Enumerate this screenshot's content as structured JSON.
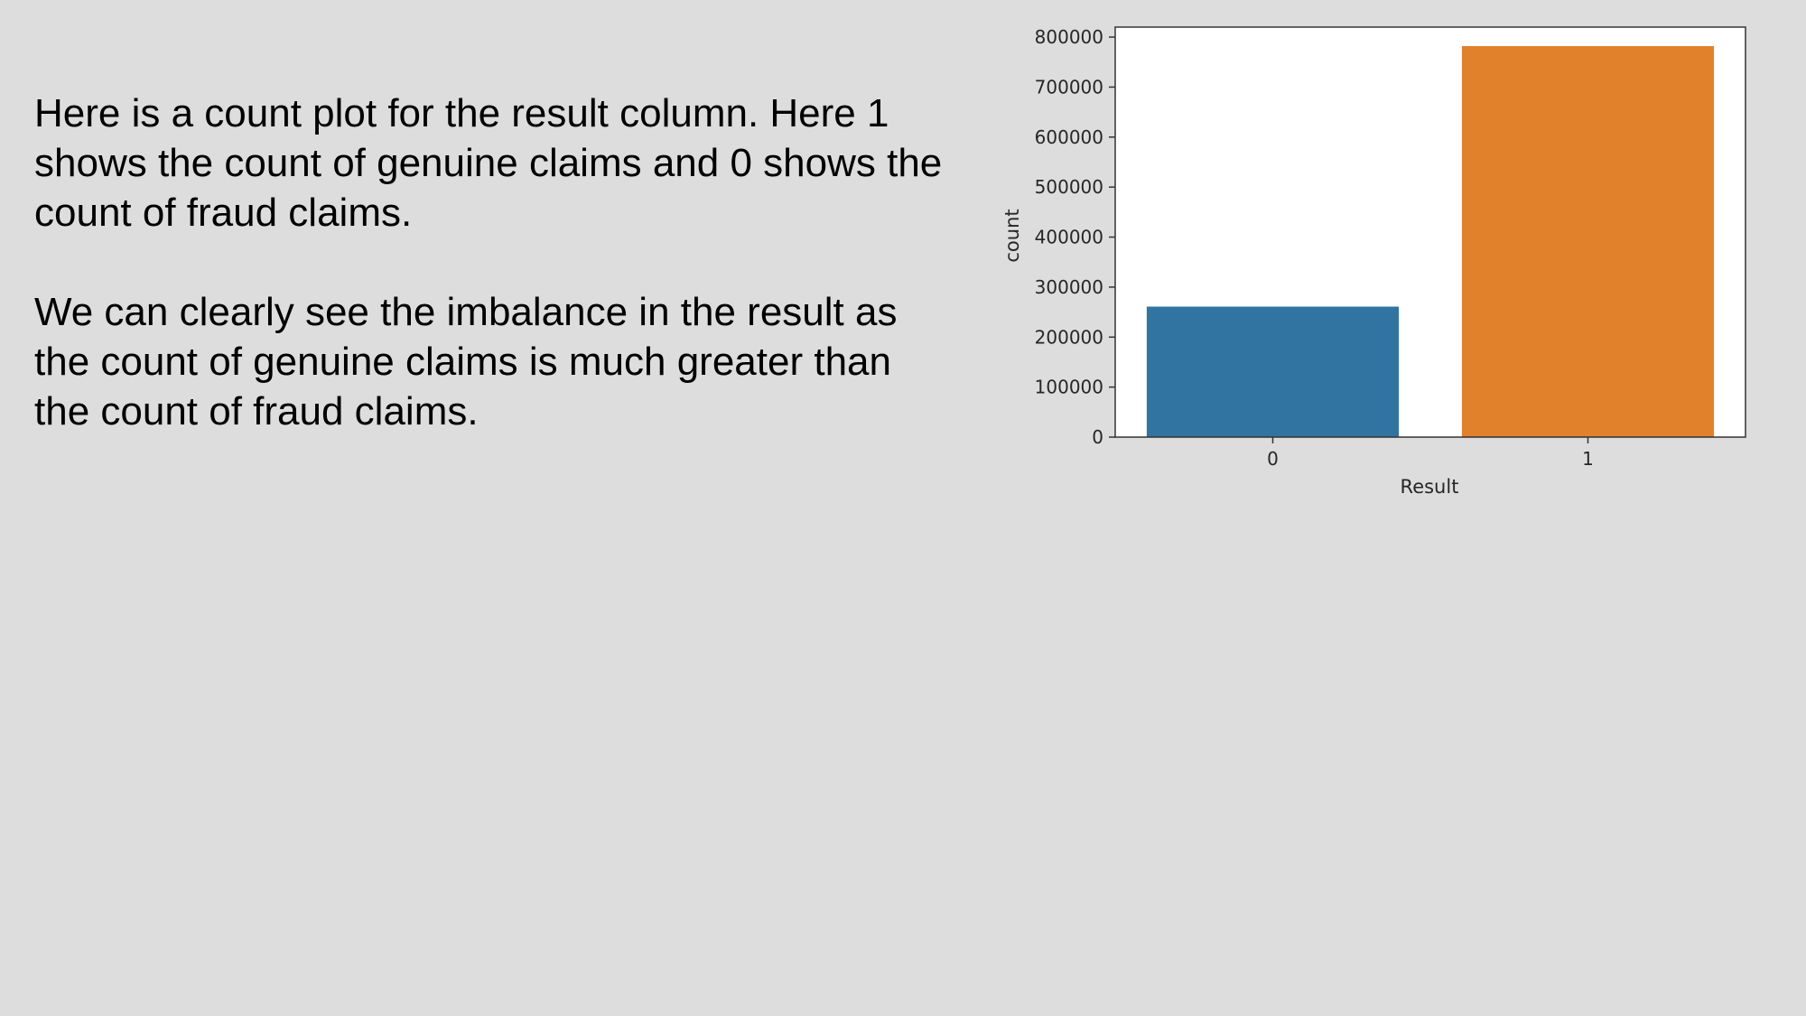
{
  "slide": {
    "paragraph_1": "Here is a count plot for the result column. Here 1 shows the count of genuine claims and 0 shows the count of fraud claims.",
    "paragraph_2": "We can clearly see the imbalance in the result as the count of genuine claims is much greater than the count of fraud claims."
  },
  "chart_data": {
    "type": "bar",
    "categories": [
      "0",
      "1"
    ],
    "values": [
      261000,
      782000
    ],
    "colors": [
      "#3274a1",
      "#e1812c"
    ],
    "xlabel": "Result",
    "ylabel": "count",
    "ylim": [
      0,
      820000
    ],
    "yticks": [
      0,
      100000,
      200000,
      300000,
      400000,
      500000,
      600000,
      700000,
      800000
    ],
    "grid": false
  }
}
